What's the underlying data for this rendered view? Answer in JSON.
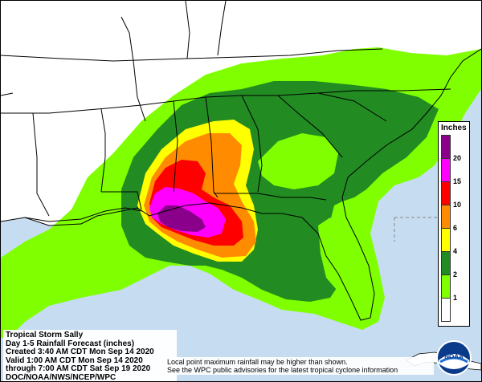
{
  "map": {
    "storm_name": "Tropical Storm Sally",
    "product": "Day 1-5 Rainfall Forecast (inches)",
    "created": "Created 3:40 AM CDT Mon Sep 14 2020",
    "valid": "Valid 1:00 AM CDT Mon Sep 14 2020",
    "through": "through 7:00 AM CDT Sat Sep 19 2020",
    "source": "DOC/NOAA/NWS/NCEP/WPC",
    "disclaimer_line1": "Local point maximum rainfall may be higher than shown.",
    "disclaimer_line2": "See the WPC public advisories for the latest tropical cyclone information"
  },
  "legend": {
    "title": "Inches",
    "ticks": [
      "20",
      "15",
      "10",
      "6",
      "4",
      "2",
      "1"
    ],
    "colors": {
      "lt_1": "#ffffff",
      "1_2": "#7fff00",
      "2_4": "#228b22",
      "4_6": "#ffff00",
      "6_10": "#ff8c00",
      "10_15": "#ff0000",
      "15_20": "#ff00ff",
      "gt_20": "#8b008b"
    }
  },
  "colors": {
    "water": "#c6dcf0",
    "land": "#ffffff",
    "boundary": "#000000"
  },
  "logo": {
    "text": "NOAA"
  }
}
